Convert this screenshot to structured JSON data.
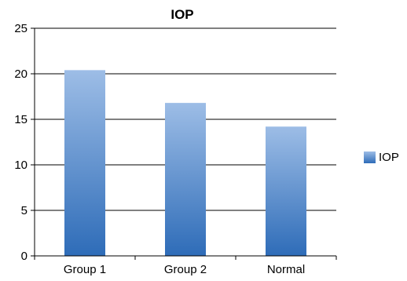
{
  "chart_data": {
    "type": "bar",
    "title": "IOP",
    "xlabel": "",
    "ylabel": "",
    "categories": [
      "Group 1",
      "Group 2",
      "Normal"
    ],
    "series": [
      {
        "name": "IOP",
        "values": [
          20.4,
          16.8,
          14.2
        ]
      }
    ],
    "ylim": [
      0,
      25
    ],
    "yticks": [
      0,
      5,
      10,
      15,
      20,
      25
    ],
    "grid": true,
    "legend": "right",
    "colors": {
      "bar_top": "#9dbde6",
      "bar_bottom": "#2e6cb8",
      "grid": "#000000"
    }
  }
}
